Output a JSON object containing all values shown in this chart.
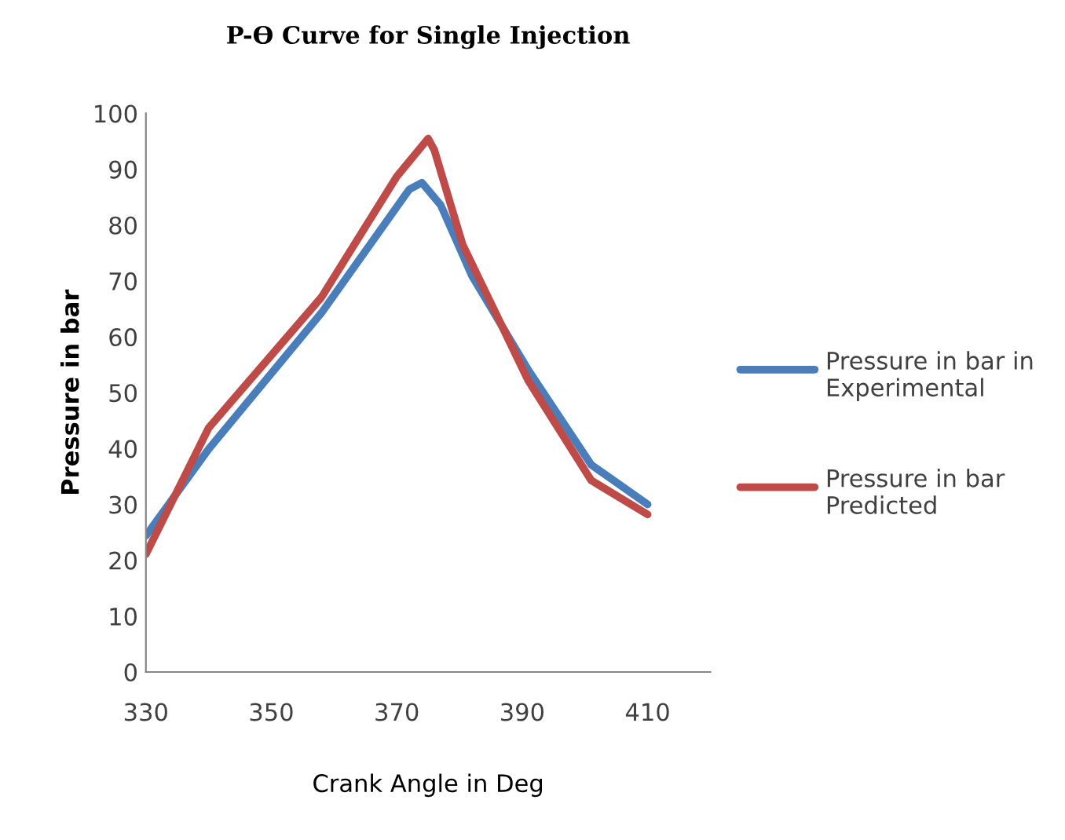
{
  "chart_data": {
    "type": "line",
    "title": "P-ϴ Curve for Single Injection",
    "xlabel": "Crank Angle in Deg",
    "ylabel": "Pressure in bar",
    "xlim": [
      330,
      420
    ],
    "xticks": [
      330,
      350,
      370,
      390,
      410
    ],
    "ylim": [
      0,
      100
    ],
    "yticks": [
      0,
      10,
      20,
      30,
      40,
      50,
      60,
      70,
      80,
      90,
      100
    ],
    "grid": false,
    "legend": "right",
    "marker": "none",
    "line_style": "solid",
    "series": [
      {
        "name": "Pressure in bar in Experimental",
        "color": "#4a7ebb",
        "x": [
          330,
          340,
          358,
          372,
          374,
          377,
          382,
          391,
          401,
          410
        ],
        "values": [
          24.4,
          39.9,
          64.3,
          86.4,
          87.6,
          83.6,
          70.9,
          54,
          37.1,
          30
        ]
      },
      {
        "name": "Pressure in bar Predicted",
        "color": "#be4b48",
        "x": [
          330,
          340,
          358,
          370,
          375,
          376,
          380.5,
          391,
          401,
          410
        ],
        "values": [
          21.1,
          43.7,
          67.1,
          88.7,
          95.5,
          93.4,
          76.5,
          52.1,
          34.3,
          28.2
        ]
      }
    ]
  }
}
